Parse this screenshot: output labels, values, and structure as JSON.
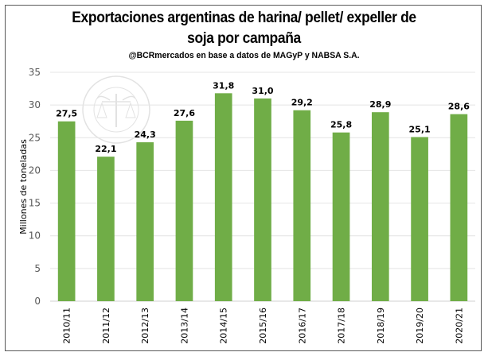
{
  "chart_data": {
    "type": "bar",
    "title": "Exportaciones argentinas de harina/ pellet/ expeller de soja por campaña",
    "title_line1": "Exportaciones argentinas de harina/ pellet/ expeller de",
    "title_line2": "soja por campaña",
    "subtitle": "@BCRmercados en base a datos de MAGyP y NABSA S.A.",
    "xlabel": "",
    "ylabel": "Millones de toneladas",
    "ylim": [
      0,
      35
    ],
    "yticks": [
      0,
      5,
      10,
      15,
      20,
      25,
      30,
      35
    ],
    "grid": true,
    "legend": "none",
    "bar_color": "#70AD47",
    "categories": [
      "2010/11",
      "2011/12",
      "2012/13",
      "2013/14",
      "2014/15",
      "2015/16",
      "2016/17",
      "2017/18",
      "2018/19",
      "2019/20",
      "2020/21"
    ],
    "values": [
      27.5,
      22.1,
      24.3,
      27.6,
      31.8,
      31.0,
      29.2,
      25.8,
      28.9,
      25.1,
      28.6
    ],
    "data_labels": [
      "27,5",
      "22,1",
      "24,3",
      "27,6",
      "31,8",
      "31,0",
      "29,2",
      "25,8",
      "28,9",
      "25,1",
      "28,6"
    ],
    "watermark": "BOLSA DE COMERCIO DE ROSARIO"
  }
}
